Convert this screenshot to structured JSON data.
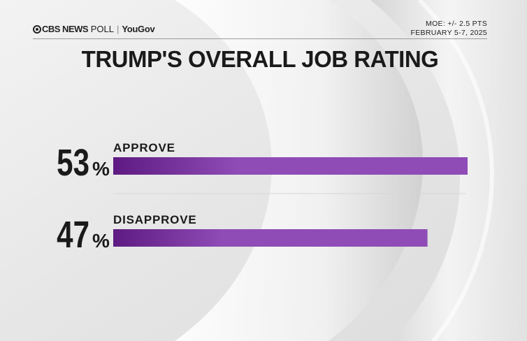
{
  "header": {
    "brand": "CBS NEWS",
    "poll": "POLL",
    "separator": "|",
    "partner": "YouGov",
    "moe": "MOE: +/- 2.5 PTS",
    "dates": "FEBRUARY 5-7, 2025"
  },
  "colors": {
    "bar_dark": "#5e1a82",
    "bar_light": "#8f4cb6",
    "text": "#1a1a1a"
  },
  "chart_data": {
    "type": "bar",
    "orientation": "horizontal",
    "title": "TRUMP'S OVERALL JOB RATING",
    "categories": [
      "APPROVE",
      "DISAPPROVE"
    ],
    "values": [
      53,
      47
    ],
    "value_labels": [
      "53",
      "47"
    ],
    "unit": "%",
    "xlim": [
      0,
      53
    ],
    "grid": false,
    "legend": "none"
  }
}
